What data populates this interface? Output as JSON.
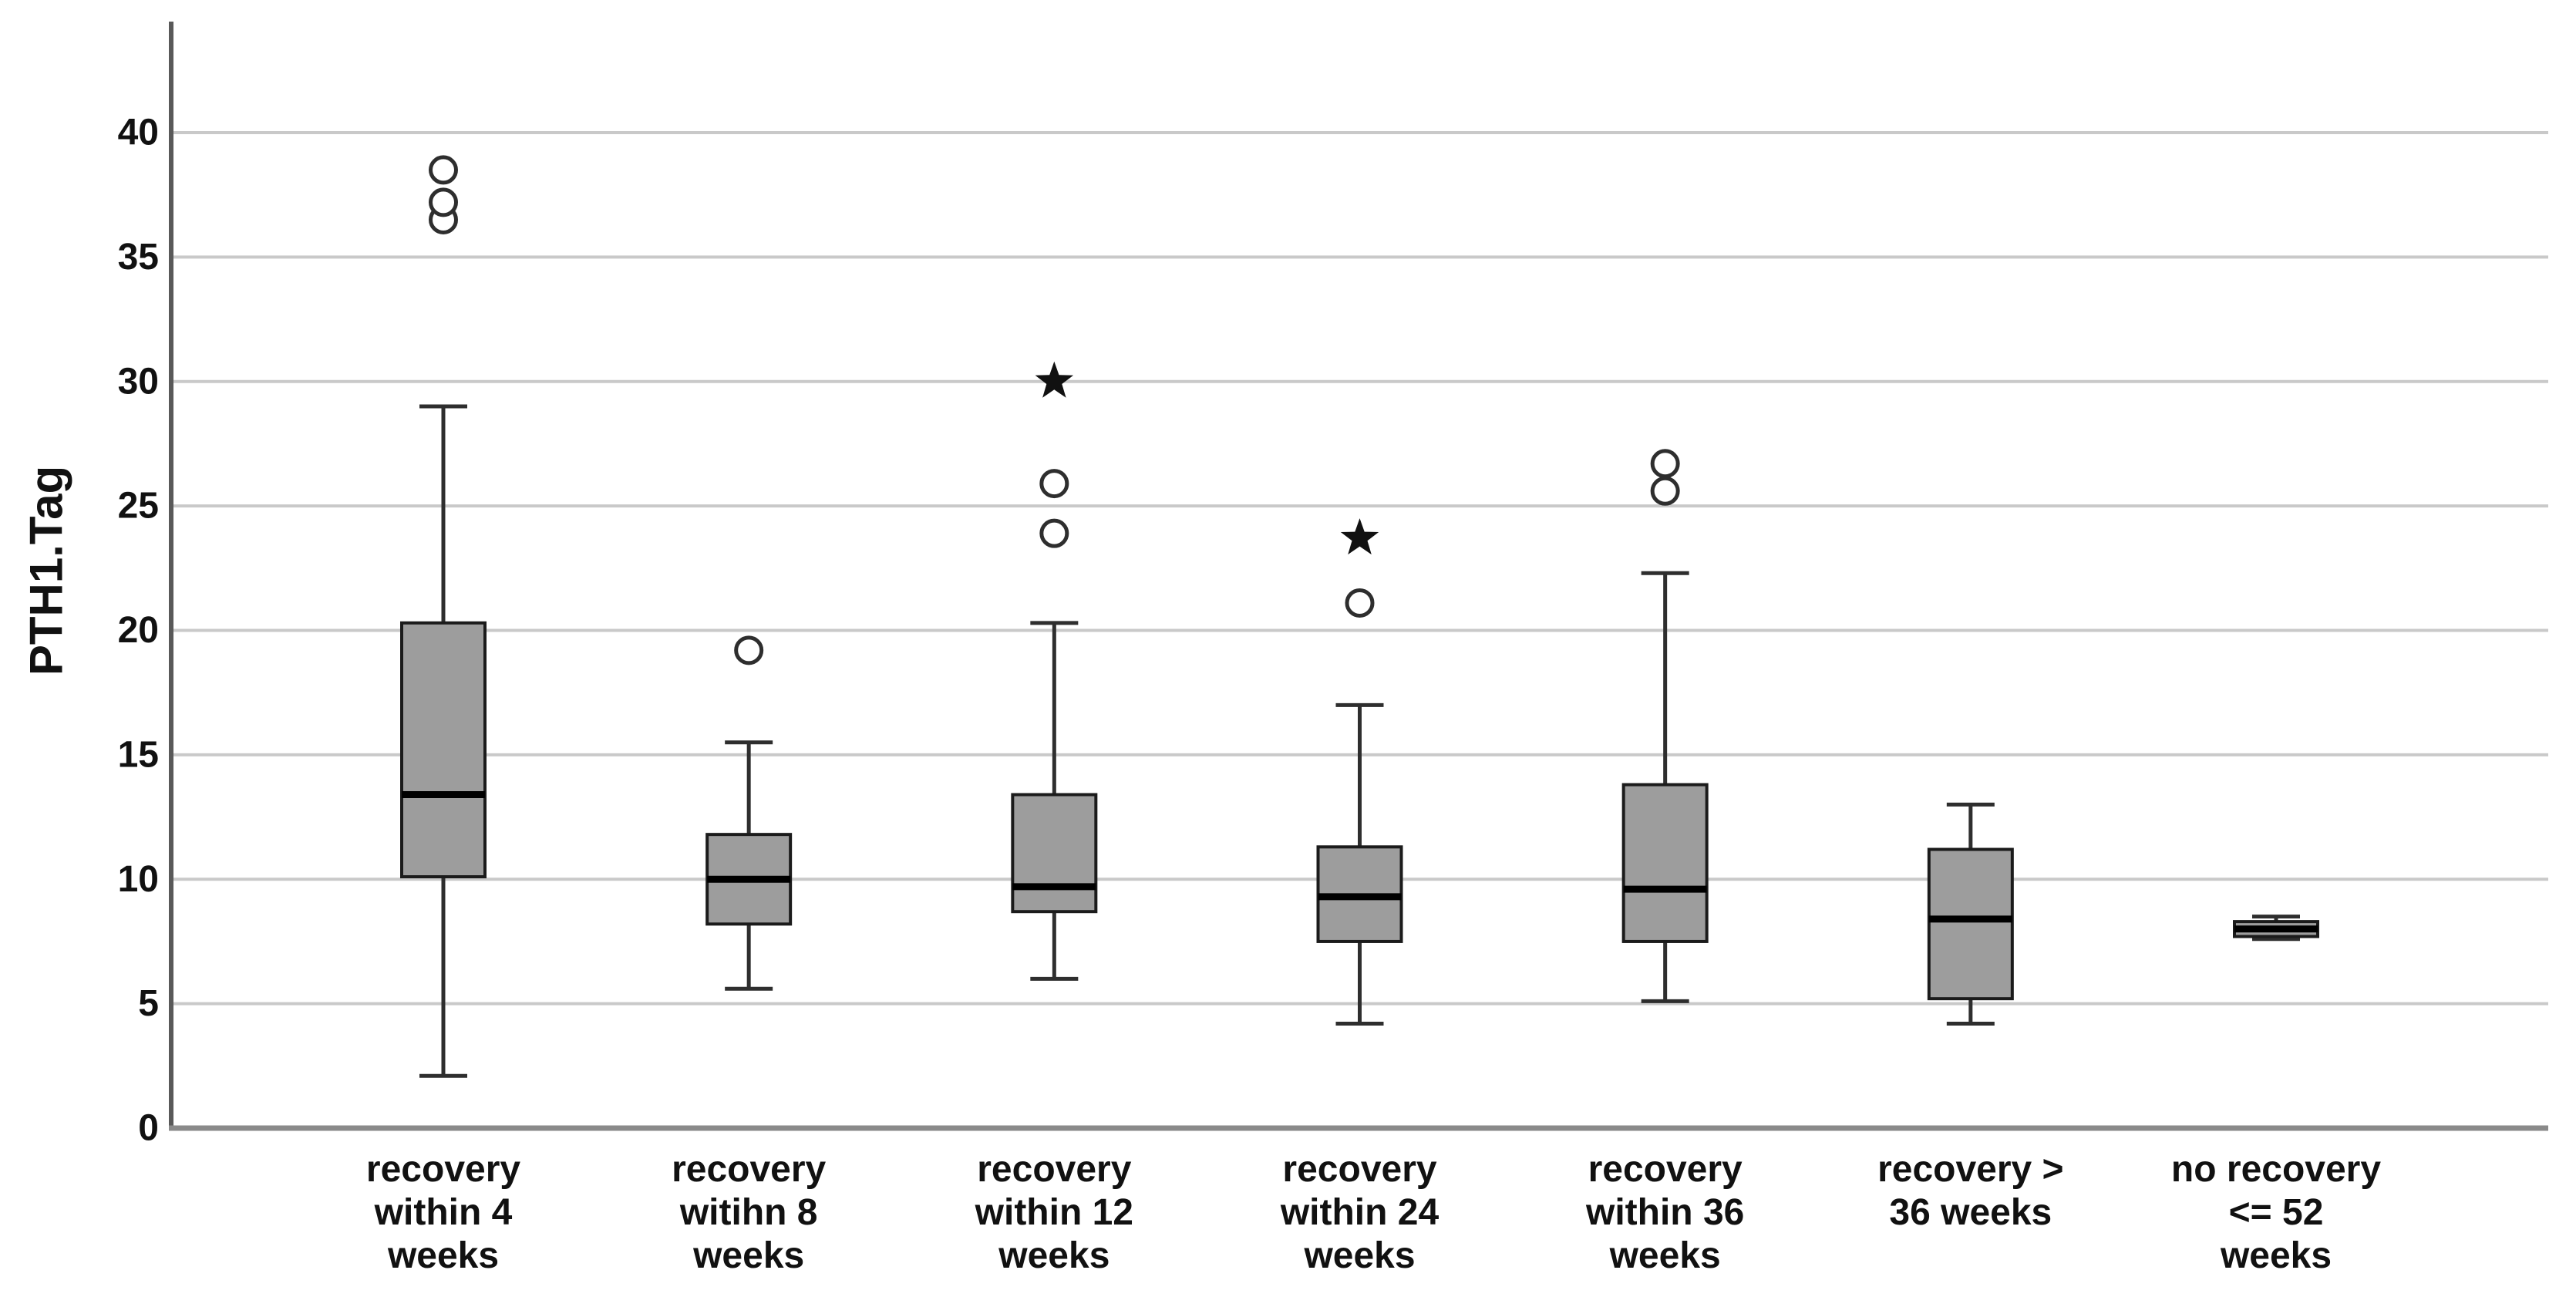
{
  "page": {
    "background": "#ffffff"
  },
  "chart_data": {
    "type": "boxplot",
    "title": "",
    "xlabel": "",
    "ylabel": "PTH1.Tag",
    "ylim": [
      0,
      44
    ],
    "yticks": [
      0,
      5,
      10,
      15,
      20,
      25,
      30,
      35,
      40
    ],
    "grid": true,
    "legend": false,
    "categories": [
      "recovery within 4 weeks",
      "recovery witihn 8 weeks",
      "recovery within 12 weeks",
      "recovery within 24 weeks",
      "recovery within 36 weeks",
      "recovery > 36 weeks",
      "no recovery <= 52 weeks"
    ],
    "category_label_lines": [
      [
        "recovery",
        "within 4",
        "weeks"
      ],
      [
        "recovery",
        "witihn 8",
        "weeks"
      ],
      [
        "recovery",
        "within 12",
        "weeks"
      ],
      [
        "recovery",
        "within 24",
        "weeks"
      ],
      [
        "recovery",
        "within 36",
        "weeks"
      ],
      [
        "recovery >",
        "36 weeks"
      ],
      [
        "no recovery",
        "<= 52",
        "weeks"
      ]
    ],
    "boxes": [
      {
        "category": "recovery within 4 weeks",
        "whisker_low": 2.1,
        "q1": 10.1,
        "median": 13.4,
        "q3": 20.3,
        "whisker_high": 29.0,
        "outliers": [
          36.5,
          37.2,
          38.5
        ],
        "extremes": []
      },
      {
        "category": "recovery witihn 8 weeks",
        "whisker_low": 5.6,
        "q1": 8.2,
        "median": 10.0,
        "q3": 11.8,
        "whisker_high": 15.5,
        "outliers": [
          19.2
        ],
        "extremes": []
      },
      {
        "category": "recovery within 12 weeks",
        "whisker_low": 6.0,
        "q1": 8.7,
        "median": 9.7,
        "q3": 13.4,
        "whisker_high": 20.3,
        "outliers": [
          23.9,
          25.9
        ],
        "extremes": [
          30.0
        ]
      },
      {
        "category": "recovery within 24 weeks",
        "whisker_low": 4.2,
        "q1": 7.5,
        "median": 9.3,
        "q3": 11.3,
        "whisker_high": 17.0,
        "outliers": [
          21.1
        ],
        "extremes": [
          23.7
        ]
      },
      {
        "category": "recovery within 36 weeks",
        "whisker_low": 5.1,
        "q1": 7.5,
        "median": 9.6,
        "q3": 13.8,
        "whisker_high": 22.3,
        "outliers": [
          25.6,
          26.7
        ],
        "extremes": []
      },
      {
        "category": "recovery > 36 weeks",
        "whisker_low": 4.2,
        "q1": 5.2,
        "median": 8.4,
        "q3": 11.2,
        "whisker_high": 13.0,
        "outliers": [],
        "extremes": []
      },
      {
        "category": "no recovery <= 52 weeks",
        "whisker_low": 7.6,
        "q1": 7.7,
        "median": 8.0,
        "q3": 8.3,
        "whisker_high": 8.5,
        "outliers": [],
        "extremes": []
      }
    ],
    "style": {
      "box_fill": "#9d9d9d",
      "box_stroke": "#1b1b1b",
      "median_color": "#000000",
      "whisker_color": "#2e2e2e",
      "outlier_stroke": "#2e2e2e",
      "outlier_fill": "#ffffff",
      "extreme_fill": "#111111",
      "gridline_color": "#c9c9c9",
      "y_axis_color": "#595959",
      "x_axis_color": "#8a8a8a",
      "text_color": "#111111"
    }
  }
}
